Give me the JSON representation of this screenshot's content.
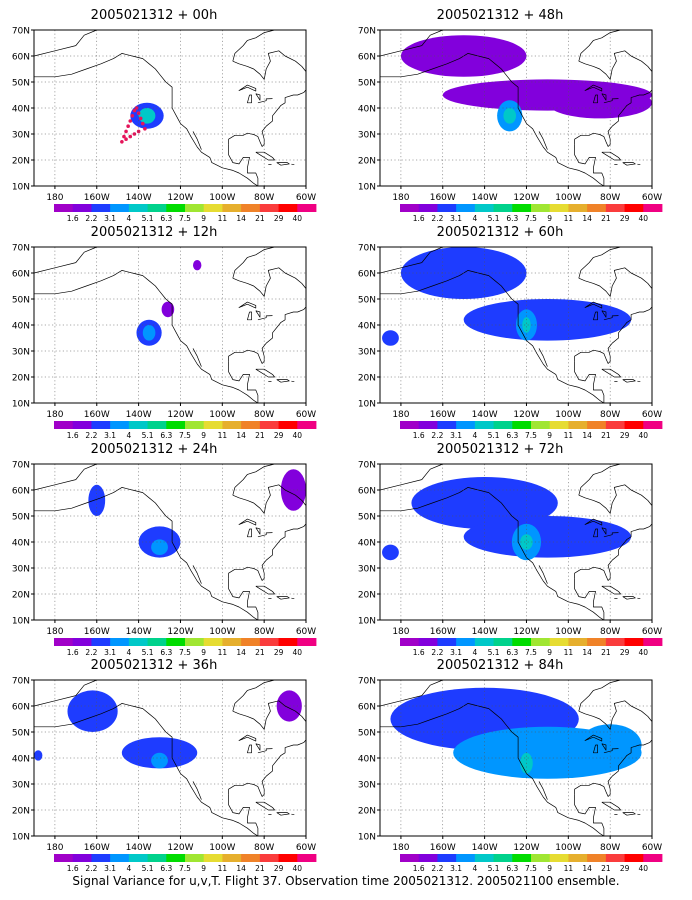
{
  "figure": {
    "footer": "Signal Variance for u,v,T. Flight 37. Observation time 2005021312. 2005021100 ensemble.",
    "map_extent": {
      "lon": [
        -190,
        -60
      ],
      "lat": [
        10,
        70
      ]
    },
    "lat_tick_labels": [
      "10N",
      "20N",
      "30N",
      "40N",
      "50N",
      "60N",
      "70N"
    ],
    "lon_tick_labels": [
      "180",
      "160W",
      "140W",
      "120W",
      "100W",
      "80W",
      "60W"
    ],
    "colorbar": {
      "labels": [
        "1.6",
        "2.2",
        "3.1",
        "4",
        "5.1",
        "6.3",
        "7.5",
        "9",
        "11",
        "14",
        "21",
        "29",
        "40"
      ],
      "colors": [
        "#a000c8",
        "#8200dc",
        "#1e3cff",
        "#0096ff",
        "#00c8c8",
        "#00d28c",
        "#00dc00",
        "#a0e632",
        "#e6dc32",
        "#e6af2d",
        "#f08228",
        "#fa3c3c",
        "#ff0000",
        "#f00082"
      ]
    }
  },
  "panels": [
    {
      "title": "2005021312 + 00h",
      "blobs": [
        [
          -136,
          37,
          8,
          5,
          2
        ],
        [
          -136,
          37,
          4,
          3,
          4
        ]
      ],
      "observation_track": [
        [
          -148,
          27
        ],
        [
          -147,
          29
        ],
        [
          -146,
          31
        ],
        [
          -145,
          33
        ],
        [
          -144,
          35
        ],
        [
          -143,
          37
        ],
        [
          -142,
          39
        ],
        [
          -141,
          40
        ],
        [
          -140,
          38
        ],
        [
          -139,
          36
        ],
        [
          -138,
          34
        ],
        [
          -137,
          32
        ],
        [
          -140,
          31
        ],
        [
          -142,
          30
        ],
        [
          -144,
          29
        ],
        [
          -146,
          28
        ]
      ]
    },
    {
      "title": "2005021312 + 48h",
      "blobs": [
        [
          -150,
          60,
          30,
          8,
          1
        ],
        [
          -110,
          45,
          50,
          6,
          1
        ],
        [
          -128,
          37,
          6,
          6,
          3
        ],
        [
          -128,
          37,
          3,
          3,
          4
        ],
        [
          -85,
          42,
          25,
          6,
          1
        ]
      ]
    },
    {
      "title": "2005021312 + 12h",
      "blobs": [
        [
          -135,
          37,
          6,
          5,
          2
        ],
        [
          -135,
          37,
          3,
          3,
          3
        ],
        [
          -126,
          46,
          3,
          3,
          1
        ],
        [
          -112,
          63,
          2,
          2,
          1
        ]
      ]
    },
    {
      "title": "2005021312 + 60h",
      "blobs": [
        [
          -150,
          60,
          30,
          10,
          2
        ],
        [
          -110,
          42,
          40,
          8,
          2
        ],
        [
          -120,
          40,
          5,
          6,
          3
        ],
        [
          -120,
          40,
          2,
          3,
          4
        ],
        [
          -185,
          35,
          4,
          3,
          2
        ]
      ]
    },
    {
      "title": "2005021312 + 24h",
      "blobs": [
        [
          -160,
          56,
          4,
          6,
          2
        ],
        [
          -130,
          40,
          10,
          6,
          2
        ],
        [
          -130,
          38,
          4,
          3,
          3
        ],
        [
          -66,
          60,
          6,
          8,
          1
        ]
      ]
    },
    {
      "title": "2005021312 + 72h",
      "blobs": [
        [
          -140,
          55,
          35,
          10,
          2
        ],
        [
          -110,
          42,
          40,
          8,
          2
        ],
        [
          -120,
          40,
          7,
          7,
          3
        ],
        [
          -120,
          40,
          3,
          3,
          4
        ],
        [
          -185,
          36,
          4,
          3,
          2
        ]
      ]
    },
    {
      "title": "2005021312 + 36h",
      "blobs": [
        [
          -162,
          58,
          12,
          8,
          2
        ],
        [
          -130,
          42,
          18,
          6,
          2
        ],
        [
          -130,
          39,
          4,
          3,
          3
        ],
        [
          -68,
          60,
          6,
          6,
          1
        ],
        [
          -188,
          41,
          2,
          2,
          2
        ]
      ]
    },
    {
      "title": "2005021312 + 84h",
      "blobs": [
        [
          -140,
          55,
          45,
          12,
          2
        ],
        [
          -110,
          42,
          45,
          10,
          3
        ],
        [
          -120,
          40,
          8,
          7,
          3
        ],
        [
          -120,
          38,
          3,
          4,
          4
        ],
        [
          -80,
          45,
          15,
          8,
          3
        ]
      ]
    }
  ]
}
